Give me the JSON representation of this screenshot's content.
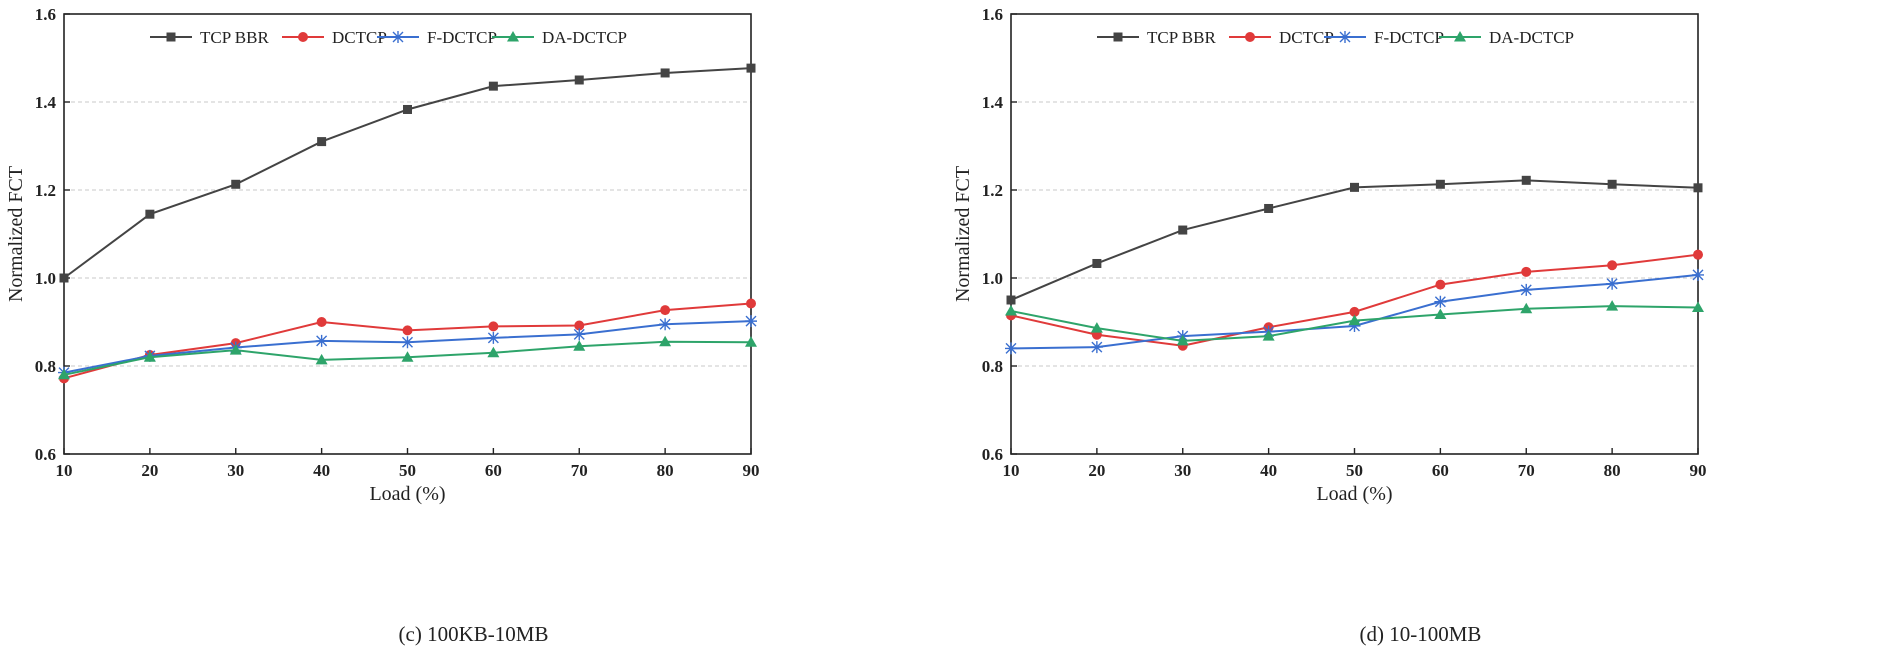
{
  "chart_data": [
    {
      "type": "line",
      "caption": "(c) 100KB-10MB",
      "xlabel": "Load (%)",
      "ylabel": "Normalized  FCT",
      "x": [
        10,
        20,
        30,
        40,
        50,
        60,
        70,
        80,
        90
      ],
      "xlim": [
        10,
        90
      ],
      "ylim": [
        0.6,
        1.6
      ],
      "xticks": [
        "10",
        "20",
        "30",
        "40",
        "50",
        "60",
        "70",
        "80",
        "90"
      ],
      "yticks": [
        "0.6",
        "0.8",
        "1.0",
        "1.2",
        "1.4",
        "1.6"
      ],
      "grid": "horizontal-dashed",
      "legend": "top",
      "series": [
        {
          "name": "TCP BBR",
          "color": "#444444",
          "marker": "square",
          "values": [
            1.0,
            1.145,
            1.213,
            1.31,
            1.383,
            1.436,
            1.45,
            1.466,
            1.477
          ]
        },
        {
          "name": "DCTCP",
          "color": "#e03a3a",
          "marker": "circle",
          "values": [
            0.772,
            0.825,
            0.852,
            0.9,
            0.881,
            0.89,
            0.892,
            0.927,
            0.942
          ]
        },
        {
          "name": "F-DCTCP",
          "color": "#3a6fd0",
          "marker": "star",
          "values": [
            0.785,
            0.823,
            0.842,
            0.857,
            0.854,
            0.864,
            0.872,
            0.895,
            0.902
          ]
        },
        {
          "name": "DA-DCTCP",
          "color": "#2ea46a",
          "marker": "triangle",
          "values": [
            0.78,
            0.82,
            0.836,
            0.814,
            0.82,
            0.83,
            0.845,
            0.855,
            0.854
          ]
        }
      ]
    },
    {
      "type": "line",
      "caption": "(d) 10-100MB",
      "xlabel": "Load (%)",
      "ylabel": "Normalized  FCT",
      "x": [
        10,
        20,
        30,
        40,
        50,
        60,
        70,
        80,
        90
      ],
      "xlim": [
        10,
        90
      ],
      "ylim": [
        0.6,
        1.6
      ],
      "xticks": [
        "10",
        "20",
        "30",
        "40",
        "50",
        "60",
        "70",
        "80",
        "90"
      ],
      "yticks": [
        "0.6",
        "0.8",
        "1.0",
        "1.2",
        "1.4",
        "1.6"
      ],
      "grid": "horizontal-dashed",
      "legend": "top",
      "series": [
        {
          "name": "TCP BBR",
          "color": "#444444",
          "marker": "square",
          "values": [
            0.95,
            1.033,
            1.109,
            1.158,
            1.206,
            1.213,
            1.222,
            1.213,
            1.205
          ]
        },
        {
          "name": "DCTCP",
          "color": "#e03a3a",
          "marker": "circle",
          "values": [
            0.915,
            0.871,
            0.846,
            0.888,
            0.923,
            0.985,
            1.014,
            1.029,
            1.053
          ]
        },
        {
          "name": "F-DCTCP",
          "color": "#3a6fd0",
          "marker": "star",
          "values": [
            0.84,
            0.843,
            0.868,
            0.878,
            0.891,
            0.946,
            0.973,
            0.987,
            1.007
          ]
        },
        {
          "name": "DA-DCTCP",
          "color": "#2ea46a",
          "marker": "triangle",
          "values": [
            0.925,
            0.886,
            0.857,
            0.868,
            0.903,
            0.917,
            0.93,
            0.936,
            0.933
          ]
        }
      ]
    }
  ]
}
